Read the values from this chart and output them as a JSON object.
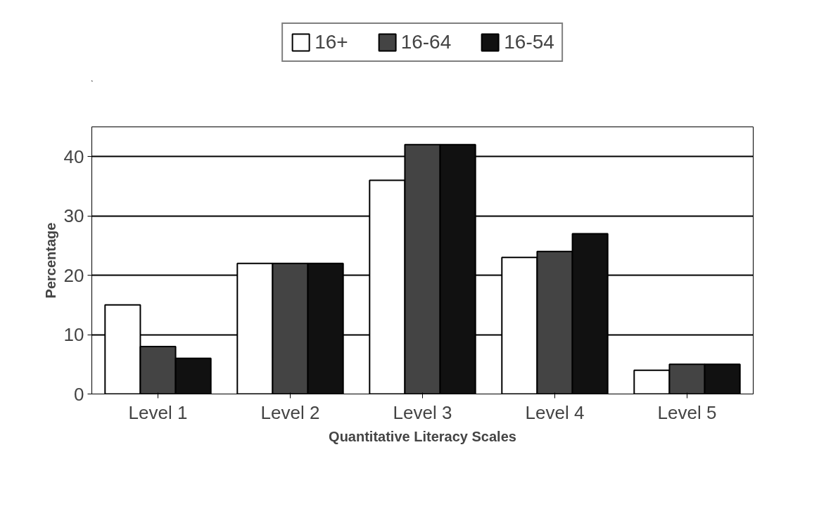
{
  "chart_data": {
    "type": "bar",
    "xlabel": "Quantitative Literacy Scales",
    "ylabel": "Percentage",
    "categories": [
      "Level 1",
      "Level 2",
      "Level 3",
      "Level 4",
      "Level 5"
    ],
    "series": [
      {
        "name": "16+",
        "color": "#ffffff",
        "values": [
          15,
          22,
          36,
          23,
          4
        ]
      },
      {
        "name": "16-64",
        "color": "#444444",
        "values": [
          8,
          22,
          42,
          24,
          5
        ]
      },
      {
        "name": "16-54",
        "color": "#111111",
        "values": [
          6,
          22,
          42,
          27,
          5
        ]
      }
    ],
    "ylim": [
      0,
      45
    ],
    "yticks": [
      0,
      10,
      20,
      30,
      40
    ],
    "grid": "y",
    "legend": "top"
  }
}
